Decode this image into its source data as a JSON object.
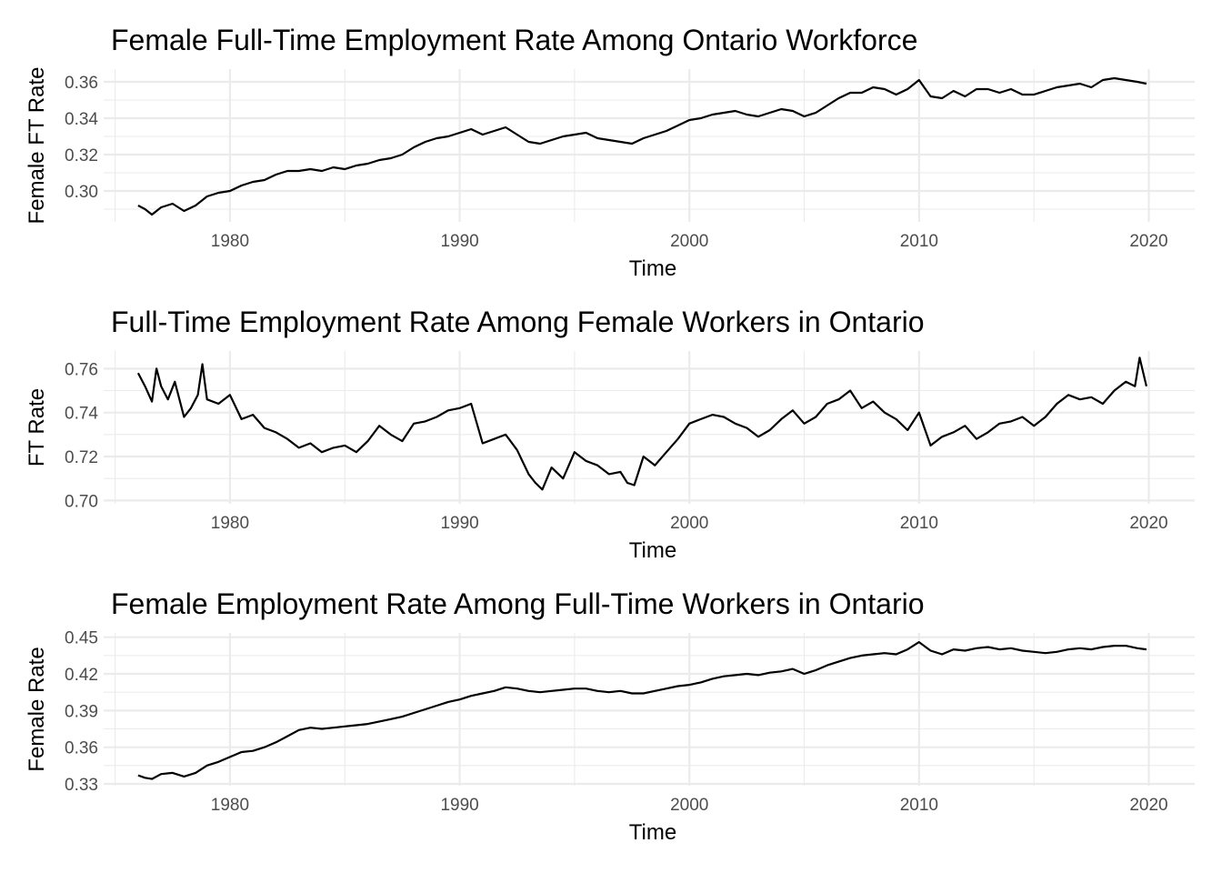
{
  "chart_data": [
    {
      "type": "line",
      "title": "Female Full-Time Employment Rate Among Ontario Workforce",
      "xlabel": "Time",
      "ylabel": "Female FT Rate",
      "xlim": [
        1974.5,
        2022
      ],
      "ylim": [
        0.283,
        0.367
      ],
      "x_ticks": [
        1980,
        1990,
        2000,
        2010,
        2020
      ],
      "x_tick_labels": [
        "1980",
        "1990",
        "2000",
        "2010",
        "2020"
      ],
      "y_ticks": [
        0.3,
        0.32,
        0.34,
        0.36
      ],
      "y_tick_labels": [
        "0.30",
        "0.32",
        "0.34",
        "0.36"
      ],
      "grid": true,
      "series": [
        {
          "x": [
            1976.0,
            1976.3,
            1976.6,
            1977.0,
            1977.5,
            1978.0,
            1978.5,
            1979.0,
            1979.5,
            1980.0,
            1980.5,
            1981.0,
            1981.5,
            1982.0,
            1982.5,
            1983.0,
            1983.5,
            1984.0,
            1984.5,
            1985.0,
            1985.5,
            1986.0,
            1986.5,
            1987.0,
            1987.5,
            1988.0,
            1988.5,
            1989.0,
            1989.5,
            1990.0,
            1990.5,
            1991.0,
            1991.5,
            1992.0,
            1992.5,
            1993.0,
            1993.5,
            1994.0,
            1994.5,
            1995.0,
            1995.5,
            1996.0,
            1996.5,
            1997.0,
            1997.5,
            1998.0,
            1998.5,
            1999.0,
            1999.5,
            2000.0,
            2000.5,
            2001.0,
            2001.5,
            2002.0,
            2002.5,
            2003.0,
            2003.5,
            2004.0,
            2004.5,
            2005.0,
            2005.5,
            2006.0,
            2006.5,
            2007.0,
            2007.5,
            2008.0,
            2008.5,
            2009.0,
            2009.5,
            2010.0,
            2010.5,
            2011.0,
            2011.5,
            2012.0,
            2012.5,
            2013.0,
            2013.5,
            2014.0,
            2014.5,
            2015.0,
            2015.5,
            2016.0,
            2016.5,
            2017.0,
            2017.5,
            2018.0,
            2018.5,
            2019.0,
            2019.5,
            2019.9
          ],
          "y": [
            0.292,
            0.29,
            0.287,
            0.291,
            0.293,
            0.289,
            0.292,
            0.297,
            0.299,
            0.3,
            0.303,
            0.305,
            0.306,
            0.309,
            0.311,
            0.311,
            0.312,
            0.311,
            0.313,
            0.312,
            0.314,
            0.315,
            0.317,
            0.318,
            0.32,
            0.324,
            0.327,
            0.329,
            0.33,
            0.332,
            0.334,
            0.331,
            0.333,
            0.335,
            0.331,
            0.327,
            0.326,
            0.328,
            0.33,
            0.331,
            0.332,
            0.329,
            0.328,
            0.327,
            0.326,
            0.329,
            0.331,
            0.333,
            0.336,
            0.339,
            0.34,
            0.342,
            0.343,
            0.344,
            0.342,
            0.341,
            0.343,
            0.345,
            0.344,
            0.341,
            0.343,
            0.347,
            0.351,
            0.354,
            0.354,
            0.357,
            0.356,
            0.353,
            0.356,
            0.361,
            0.352,
            0.351,
            0.355,
            0.352,
            0.356,
            0.356,
            0.354,
            0.356,
            0.353,
            0.353,
            0.355,
            0.357,
            0.358,
            0.359,
            0.357,
            0.361,
            0.362,
            0.361,
            0.36,
            0.359
          ]
        }
      ]
    },
    {
      "type": "line",
      "title": "Full-Time Employment Rate Among Female Workers in Ontario",
      "xlabel": "Time",
      "ylabel": "FT Rate",
      "xlim": [
        1974.5,
        2022
      ],
      "ylim": [
        0.6985,
        0.768
      ],
      "x_ticks": [
        1980,
        1990,
        2000,
        2010,
        2020
      ],
      "x_tick_labels": [
        "1980",
        "1990",
        "2000",
        "2010",
        "2020"
      ],
      "y_ticks": [
        0.7,
        0.72,
        0.74,
        0.76
      ],
      "y_tick_labels": [
        "0.70",
        "0.72",
        "0.74",
        "0.76"
      ],
      "grid": true,
      "series": [
        {
          "x": [
            1976.0,
            1976.3,
            1976.6,
            1976.8,
            1977.0,
            1977.3,
            1977.6,
            1978.0,
            1978.3,
            1978.6,
            1978.8,
            1979.0,
            1979.5,
            1980.0,
            1980.5,
            1981.0,
            1981.5,
            1982.0,
            1982.5,
            1983.0,
            1983.5,
            1984.0,
            1984.5,
            1985.0,
            1985.5,
            1986.0,
            1986.5,
            1987.0,
            1987.5,
            1988.0,
            1988.5,
            1989.0,
            1989.5,
            1990.0,
            1990.5,
            1991.0,
            1991.5,
            1992.0,
            1992.5,
            1993.0,
            1993.3,
            1993.6,
            1994.0,
            1994.5,
            1995.0,
            1995.5,
            1996.0,
            1996.5,
            1997.0,
            1997.3,
            1997.6,
            1998.0,
            1998.5,
            1999.0,
            1999.5,
            2000.0,
            2000.5,
            2001.0,
            2001.5,
            2002.0,
            2002.5,
            2003.0,
            2003.5,
            2004.0,
            2004.5,
            2005.0,
            2005.5,
            2006.0,
            2006.5,
            2007.0,
            2007.5,
            2008.0,
            2008.5,
            2009.0,
            2009.5,
            2010.0,
            2010.5,
            2011.0,
            2011.5,
            2012.0,
            2012.5,
            2013.0,
            2013.5,
            2014.0,
            2014.5,
            2015.0,
            2015.5,
            2016.0,
            2016.5,
            2017.0,
            2017.5,
            2018.0,
            2018.5,
            2019.0,
            2019.4,
            2019.6,
            2019.9
          ],
          "y": [
            0.758,
            0.752,
            0.745,
            0.76,
            0.752,
            0.746,
            0.754,
            0.738,
            0.742,
            0.748,
            0.762,
            0.746,
            0.744,
            0.748,
            0.737,
            0.739,
            0.733,
            0.731,
            0.728,
            0.724,
            0.726,
            0.722,
            0.724,
            0.725,
            0.722,
            0.727,
            0.734,
            0.73,
            0.727,
            0.735,
            0.736,
            0.738,
            0.741,
            0.742,
            0.744,
            0.726,
            0.728,
            0.73,
            0.723,
            0.712,
            0.708,
            0.705,
            0.715,
            0.71,
            0.722,
            0.718,
            0.716,
            0.712,
            0.713,
            0.708,
            0.707,
            0.72,
            0.716,
            0.722,
            0.728,
            0.735,
            0.737,
            0.739,
            0.738,
            0.735,
            0.733,
            0.729,
            0.732,
            0.737,
            0.741,
            0.735,
            0.738,
            0.744,
            0.746,
            0.75,
            0.742,
            0.745,
            0.74,
            0.737,
            0.732,
            0.74,
            0.725,
            0.729,
            0.731,
            0.734,
            0.728,
            0.731,
            0.735,
            0.736,
            0.738,
            0.734,
            0.738,
            0.744,
            0.748,
            0.746,
            0.747,
            0.744,
            0.75,
            0.754,
            0.752,
            0.765,
            0.752
          ]
        }
      ]
    },
    {
      "type": "line",
      "title": "Female Employment Rate Among Full-Time Workers in Ontario",
      "xlabel": "Time",
      "ylabel": "Female Rate",
      "xlim": [
        1974.5,
        2022
      ],
      "ylim": [
        0.3285,
        0.4535
      ],
      "x_ticks": [
        1980,
        1990,
        2000,
        2010,
        2020
      ],
      "x_tick_labels": [
        "1980",
        "1990",
        "2000",
        "2010",
        "2020"
      ],
      "y_ticks": [
        0.33,
        0.36,
        0.39,
        0.42,
        0.45
      ],
      "y_tick_labels": [
        "0.33",
        "0.36",
        "0.39",
        "0.42",
        "0.45"
      ],
      "grid": true,
      "series": [
        {
          "x": [
            1976.0,
            1976.3,
            1976.6,
            1977.0,
            1977.5,
            1978.0,
            1978.5,
            1979.0,
            1979.5,
            1980.0,
            1980.5,
            1981.0,
            1981.5,
            1982.0,
            1982.5,
            1983.0,
            1983.5,
            1984.0,
            1984.5,
            1985.0,
            1985.5,
            1986.0,
            1986.5,
            1987.0,
            1987.5,
            1988.0,
            1988.5,
            1989.0,
            1989.5,
            1990.0,
            1990.5,
            1991.0,
            1991.5,
            1992.0,
            1992.5,
            1993.0,
            1993.5,
            1994.0,
            1994.5,
            1995.0,
            1995.5,
            1996.0,
            1996.5,
            1997.0,
            1997.5,
            1998.0,
            1998.5,
            1999.0,
            1999.5,
            2000.0,
            2000.5,
            2001.0,
            2001.5,
            2002.0,
            2002.5,
            2003.0,
            2003.5,
            2004.0,
            2004.5,
            2005.0,
            2005.5,
            2006.0,
            2006.5,
            2007.0,
            2007.5,
            2008.0,
            2008.5,
            2009.0,
            2009.5,
            2010.0,
            2010.5,
            2011.0,
            2011.5,
            2012.0,
            2012.5,
            2013.0,
            2013.5,
            2014.0,
            2014.5,
            2015.0,
            2015.5,
            2016.0,
            2016.5,
            2017.0,
            2017.5,
            2018.0,
            2018.5,
            2019.0,
            2019.5,
            2019.9
          ],
          "y": [
            0.337,
            0.335,
            0.334,
            0.338,
            0.339,
            0.336,
            0.339,
            0.345,
            0.348,
            0.352,
            0.356,
            0.357,
            0.36,
            0.364,
            0.369,
            0.374,
            0.376,
            0.375,
            0.376,
            0.377,
            0.378,
            0.379,
            0.381,
            0.383,
            0.385,
            0.388,
            0.391,
            0.394,
            0.397,
            0.399,
            0.402,
            0.404,
            0.406,
            0.409,
            0.408,
            0.406,
            0.405,
            0.406,
            0.407,
            0.408,
            0.408,
            0.406,
            0.405,
            0.406,
            0.404,
            0.404,
            0.406,
            0.408,
            0.41,
            0.411,
            0.413,
            0.416,
            0.418,
            0.419,
            0.42,
            0.419,
            0.421,
            0.422,
            0.424,
            0.42,
            0.423,
            0.427,
            0.43,
            0.433,
            0.435,
            0.436,
            0.437,
            0.436,
            0.44,
            0.446,
            0.439,
            0.436,
            0.44,
            0.439,
            0.441,
            0.442,
            0.44,
            0.441,
            0.439,
            0.438,
            0.437,
            0.438,
            0.44,
            0.441,
            0.44,
            0.442,
            0.443,
            0.443,
            0.441,
            0.44
          ]
        }
      ]
    }
  ]
}
